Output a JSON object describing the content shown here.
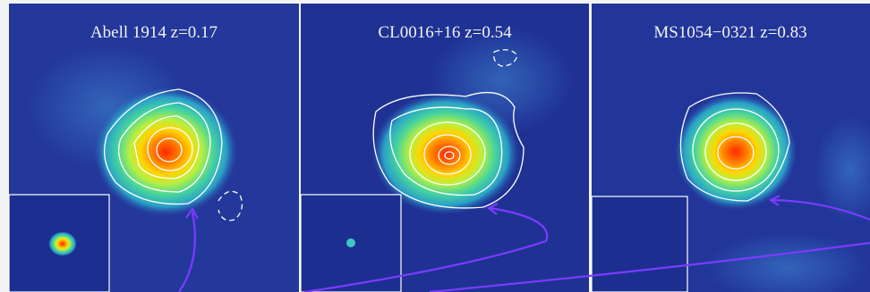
{
  "panels": [
    {
      "title": "Abell 1914 z=0.17"
    },
    {
      "title": "CL0016+16 z=0.54"
    },
    {
      "title": "MS1054−0321 z=0.83"
    }
  ]
}
